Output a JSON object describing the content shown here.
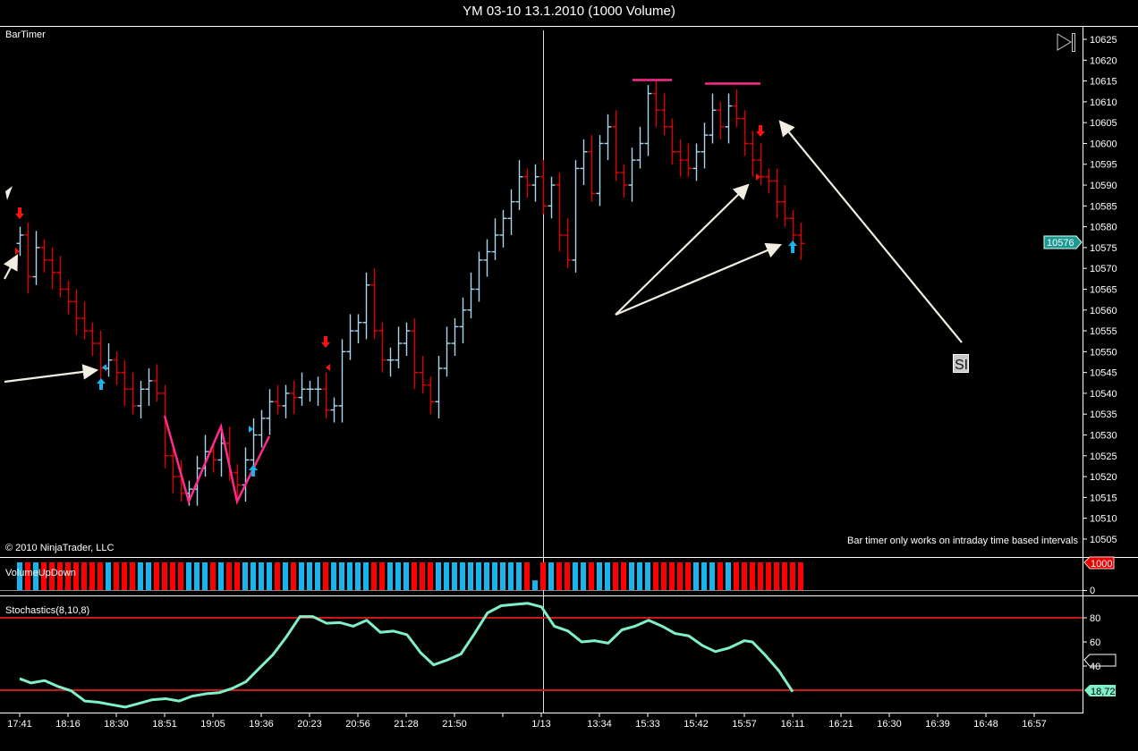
{
  "window": {
    "title": "YM 03-10  13.1.2010 (1000 Volume)"
  },
  "price_panel": {
    "indicator_label": "BarTimer",
    "copyright": "© 2010 NinjaTrader, LLC",
    "bar_timer_message": "Bar timer only works on intraday time based intervals",
    "annotation_box_text": "SI",
    "last_price_tag": "10576"
  },
  "volume_panel": {
    "label": "VolumeUpDown",
    "max_tag": "1000",
    "zero_label": "0"
  },
  "stoch_panel": {
    "label": "Stochastics(8,10,8)",
    "ticks": [
      "80",
      "60",
      "40"
    ],
    "last_value_tag": "18,72"
  },
  "colors": {
    "up": "#a9d6ee",
    "down": "#e00000",
    "vol_up": "#19b4ec",
    "vol_down": "#ff0000",
    "stoch": "#7ff0c8",
    "level": "#c81818",
    "pink": "#ff2a8a",
    "price_tag": "#1a9a90"
  },
  "chart_data": [
    {
      "type": "ohlc",
      "title": "YM 03-10  13.1.2010 (1000 Volume)",
      "ylim": [
        10502,
        10628
      ],
      "y_ticks": [
        "10625",
        "10620",
        "10615",
        "10610",
        "10605",
        "10600",
        "10595",
        "10590",
        "10585",
        "10580",
        "10575",
        "10570",
        "10565",
        "10560",
        "10555",
        "10550",
        "10545",
        "10540",
        "10535",
        "10530",
        "10525",
        "10520",
        "10515",
        "10510",
        "10505"
      ],
      "first_open": 10576,
      "closes": [
        10578,
        10568,
        10575,
        10572,
        10569,
        10565,
        10562,
        10558,
        10555,
        10552,
        10546,
        10548,
        10545,
        10541,
        10537,
        10541,
        10543,
        10540,
        10525,
        10520,
        10516,
        10517,
        10522,
        10526,
        10524,
        10528,
        10521,
        10518,
        10524,
        10530,
        10534,
        10538,
        10537,
        10540,
        10539,
        10541,
        10541,
        10541,
        10536,
        10537,
        10550,
        10555,
        10557,
        10566,
        10555,
        10548,
        10548,
        10552,
        10555,
        10545,
        10542,
        10538,
        10546,
        10552,
        10556,
        10560,
        10565,
        10572,
        10574,
        10578,
        10582,
        10586,
        10592,
        10590,
        10592,
        10585,
        10590,
        10578,
        10572,
        10594,
        10598,
        10588,
        10600,
        10604,
        10593,
        10590,
        10596,
        10600,
        10612,
        10608,
        10604,
        10598,
        10596,
        10594,
        10598,
        10602,
        10608,
        10604,
        10609,
        10606,
        10600,
        10596,
        10592,
        10591,
        10586,
        10582,
        10578,
        10576
      ],
      "time_axis": [
        {
          "label": "17:41",
          "bar": 0
        },
        {
          "label": "18:16",
          "bar": 6
        },
        {
          "label": "18:30",
          "bar": 12
        },
        {
          "label": "18:51",
          "bar": 18
        },
        {
          "label": "19:05",
          "bar": 24
        },
        {
          "label": "19:36",
          "bar": 30
        },
        {
          "label": "20:23",
          "bar": 36
        },
        {
          "label": "20:56",
          "bar": 42
        },
        {
          "label": "21:28",
          "bar": 48
        },
        {
          "label": "21:50",
          "bar": 54
        },
        {
          "label": "",
          "bar": 60
        },
        {
          "label": "1/13",
          "bar": 65
        },
        {
          "label": "13:34",
          "bar": 72
        },
        {
          "label": "15:33",
          "bar": 78
        },
        {
          "label": "15:42",
          "bar": 84
        },
        {
          "label": "15:57",
          "bar": 90
        },
        {
          "label": "16:11",
          "bar": 96
        },
        {
          "label": "16:21",
          "bar": 102
        },
        {
          "label": "16:30",
          "bar": 108
        },
        {
          "label": "16:39",
          "bar": 114
        },
        {
          "label": "16:48",
          "bar": 120
        },
        {
          "label": "16:57",
          "bar": 126
        }
      ]
    },
    {
      "type": "bar",
      "title": "VolumeUpDown",
      "ylim": [
        0,
        1000
      ],
      "values_default": 1000,
      "exceptions": [
        {
          "bar": 64,
          "value": 350
        }
      ]
    },
    {
      "type": "line",
      "title": "Stochastics(8,10,8)",
      "ylim": [
        0,
        100
      ],
      "levels": [
        20,
        80
      ],
      "x_bar": [
        0,
        1.4,
        3.1,
        4.8,
        6.4,
        8.1,
        9.8,
        11.4,
        13.1,
        14.8,
        16.4,
        18.1,
        19.8,
        21.4,
        23.1,
        24.8,
        26.4,
        28.1,
        29.8,
        31.4,
        33.1,
        34.8,
        36.4,
        38.1,
        39.8,
        41.4,
        43.1,
        44.8,
        46.4,
        48.1,
        49.8,
        51.4,
        53.1,
        54.8,
        56.4,
        58.1,
        59.8,
        61.4,
        63.1,
        64.8,
        66.4,
        68.1,
        69.8,
        71.4,
        73.1,
        74.8,
        76.4,
        78.1,
        79.8,
        81.4,
        83.1,
        84.8,
        86.4,
        88.1,
        90.0,
        91.0,
        92.6,
        94.3,
        96.0
      ],
      "values": [
        29.6,
        26,
        28,
        23,
        19.5,
        11,
        10,
        8,
        6,
        9,
        12,
        13,
        11,
        15,
        17,
        18,
        21.5,
        27,
        38.5,
        49,
        64,
        81,
        81,
        75.5,
        76,
        73,
        78,
        68,
        69,
        66,
        51,
        41,
        45,
        50,
        66,
        84,
        90,
        91,
        92,
        89,
        73,
        69,
        60,
        61,
        59,
        70,
        73,
        78,
        73,
        67,
        65,
        57,
        52,
        55,
        61,
        60,
        49,
        36,
        18.72
      ]
    }
  ]
}
